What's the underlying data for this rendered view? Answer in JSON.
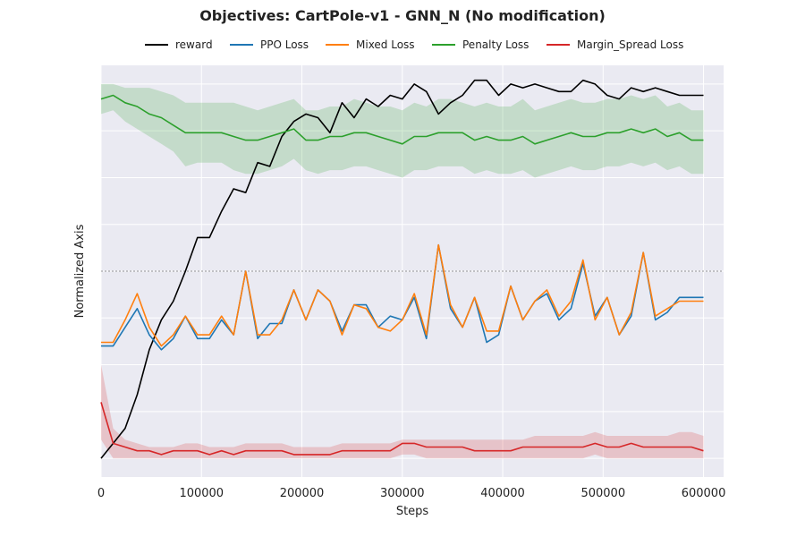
{
  "chart_data": {
    "type": "line",
    "title": "Objectives: CartPole-v1 - GNN_N (No modification)",
    "xlabel": "Steps",
    "ylabel": "Normalized Axis",
    "xlim": [
      0,
      620000
    ],
    "ylim": [
      -0.05,
      1.05
    ],
    "x_ticks": [
      0,
      100000,
      200000,
      300000,
      400000,
      500000,
      600000
    ],
    "x_tick_labels": [
      "0",
      "100000",
      "200000",
      "300000",
      "400000",
      "500000",
      "600000"
    ],
    "y_grid": [
      0.0,
      0.125,
      0.25,
      0.375,
      0.5,
      0.625,
      0.75,
      0.875,
      1.0
    ],
    "reference_line": {
      "y": 0.5,
      "style": "dashed",
      "color": "#777777"
    },
    "background": "#eaeaf2",
    "grid": true,
    "legend_position": "top-center",
    "x": [
      0,
      12000,
      24000,
      36000,
      48000,
      60000,
      72000,
      84000,
      96000,
      108000,
      120000,
      132000,
      144000,
      156000,
      168000,
      180000,
      192000,
      204000,
      216000,
      228000,
      240000,
      252000,
      264000,
      276000,
      288000,
      300000,
      312000,
      324000,
      336000,
      348000,
      360000,
      372000,
      384000,
      396000,
      408000,
      420000,
      432000,
      444000,
      456000,
      468000,
      480000,
      492000,
      504000,
      516000,
      528000,
      540000,
      552000,
      564000,
      576000,
      588000,
      600000
    ],
    "series": [
      {
        "name": "reward",
        "color": "#000000",
        "values": [
          0.0,
          0.04,
          0.08,
          0.17,
          0.29,
          0.37,
          0.42,
          0.5,
          0.59,
          0.59,
          0.66,
          0.72,
          0.71,
          0.79,
          0.78,
          0.86,
          0.9,
          0.92,
          0.91,
          0.87,
          0.95,
          0.91,
          0.96,
          0.94,
          0.97,
          0.96,
          1.0,
          0.98,
          0.92,
          0.95,
          0.97,
          1.01,
          1.01,
          0.97,
          1.0,
          0.99,
          1.0,
          0.99,
          0.98,
          0.98,
          1.01,
          1.0,
          0.97,
          0.96,
          0.99,
          0.98,
          0.99,
          0.98,
          0.97,
          0.97,
          0.97
        ]
      },
      {
        "name": "PPO Loss",
        "color": "#1f77b4",
        "values": [
          0.3,
          0.3,
          0.35,
          0.4,
          0.33,
          0.29,
          0.32,
          0.38,
          0.32,
          0.32,
          0.37,
          0.33,
          0.5,
          0.32,
          0.36,
          0.36,
          0.45,
          0.37,
          0.45,
          0.42,
          0.34,
          0.41,
          0.41,
          0.35,
          0.38,
          0.37,
          0.43,
          0.32,
          0.57,
          0.4,
          0.35,
          0.43,
          0.31,
          0.33,
          0.46,
          0.37,
          0.42,
          0.44,
          0.37,
          0.4,
          0.52,
          0.38,
          0.43,
          0.33,
          0.38,
          0.55,
          0.37,
          0.39,
          0.43,
          0.43,
          0.43
        ]
      },
      {
        "name": "Mixed Loss",
        "color": "#ff7f0e",
        "values": [
          0.31,
          0.31,
          0.37,
          0.44,
          0.35,
          0.3,
          0.33,
          0.38,
          0.33,
          0.33,
          0.38,
          0.33,
          0.5,
          0.33,
          0.33,
          0.37,
          0.45,
          0.37,
          0.45,
          0.42,
          0.33,
          0.41,
          0.4,
          0.35,
          0.34,
          0.37,
          0.44,
          0.33,
          0.57,
          0.41,
          0.35,
          0.43,
          0.34,
          0.34,
          0.46,
          0.37,
          0.42,
          0.45,
          0.38,
          0.42,
          0.53,
          0.37,
          0.43,
          0.33,
          0.39,
          0.55,
          0.38,
          0.4,
          0.42,
          0.42,
          0.42
        ]
      },
      {
        "name": "Penalty Loss",
        "color": "#2ca02c",
        "band_color": "#2ca02c",
        "values": [
          0.96,
          0.97,
          0.95,
          0.94,
          0.92,
          0.91,
          0.89,
          0.87,
          0.87,
          0.87,
          0.87,
          0.86,
          0.85,
          0.85,
          0.86,
          0.87,
          0.88,
          0.85,
          0.85,
          0.86,
          0.86,
          0.87,
          0.87,
          0.86,
          0.85,
          0.84,
          0.86,
          0.86,
          0.87,
          0.87,
          0.87,
          0.85,
          0.86,
          0.85,
          0.85,
          0.86,
          0.84,
          0.85,
          0.86,
          0.87,
          0.86,
          0.86,
          0.87,
          0.87,
          0.88,
          0.87,
          0.88,
          0.86,
          0.87,
          0.85,
          0.85
        ],
        "lower": [
          0.92,
          0.93,
          0.9,
          0.88,
          0.86,
          0.84,
          0.82,
          0.78,
          0.79,
          0.79,
          0.79,
          0.77,
          0.76,
          0.76,
          0.77,
          0.78,
          0.8,
          0.77,
          0.76,
          0.77,
          0.77,
          0.78,
          0.78,
          0.77,
          0.76,
          0.75,
          0.77,
          0.77,
          0.78,
          0.78,
          0.78,
          0.76,
          0.77,
          0.76,
          0.76,
          0.77,
          0.75,
          0.76,
          0.77,
          0.78,
          0.77,
          0.77,
          0.78,
          0.78,
          0.79,
          0.78,
          0.79,
          0.77,
          0.78,
          0.76,
          0.76
        ],
        "upper": [
          1.0,
          1.0,
          0.99,
          0.99,
          0.99,
          0.98,
          0.97,
          0.95,
          0.95,
          0.95,
          0.95,
          0.95,
          0.94,
          0.93,
          0.94,
          0.95,
          0.96,
          0.93,
          0.93,
          0.94,
          0.94,
          0.96,
          0.95,
          0.94,
          0.94,
          0.93,
          0.95,
          0.94,
          0.96,
          0.96,
          0.95,
          0.94,
          0.95,
          0.94,
          0.94,
          0.96,
          0.93,
          0.94,
          0.95,
          0.96,
          0.95,
          0.95,
          0.96,
          0.96,
          0.97,
          0.96,
          0.97,
          0.94,
          0.95,
          0.93,
          0.93
        ]
      },
      {
        "name": "Margin_Spread Loss",
        "color": "#d62728",
        "band_color": "#d62728",
        "values": [
          0.15,
          0.04,
          0.03,
          0.02,
          0.02,
          0.01,
          0.02,
          0.02,
          0.02,
          0.01,
          0.02,
          0.01,
          0.02,
          0.02,
          0.02,
          0.02,
          0.01,
          0.01,
          0.01,
          0.01,
          0.02,
          0.02,
          0.02,
          0.02,
          0.02,
          0.04,
          0.04,
          0.03,
          0.03,
          0.03,
          0.03,
          0.02,
          0.02,
          0.02,
          0.02,
          0.03,
          0.03,
          0.03,
          0.03,
          0.03,
          0.03,
          0.04,
          0.03,
          0.03,
          0.04,
          0.03,
          0.03,
          0.03,
          0.03,
          0.03,
          0.02
        ],
        "lower": [
          0.05,
          0.0,
          0.0,
          0.0,
          0.0,
          0.0,
          0.0,
          0.0,
          0.0,
          0.0,
          0.0,
          0.0,
          0.0,
          0.0,
          0.0,
          0.0,
          0.0,
          0.0,
          0.0,
          0.0,
          0.0,
          0.0,
          0.0,
          0.0,
          0.0,
          0.01,
          0.01,
          0.0,
          0.0,
          0.0,
          0.0,
          0.0,
          0.0,
          0.0,
          0.0,
          0.0,
          0.0,
          0.0,
          0.0,
          0.0,
          0.0,
          0.01,
          0.0,
          0.0,
          0.0,
          0.0,
          0.0,
          0.0,
          0.0,
          0.0,
          0.0
        ],
        "upper": [
          0.25,
          0.08,
          0.05,
          0.04,
          0.03,
          0.03,
          0.03,
          0.04,
          0.04,
          0.03,
          0.03,
          0.03,
          0.04,
          0.04,
          0.04,
          0.04,
          0.03,
          0.03,
          0.03,
          0.03,
          0.04,
          0.04,
          0.04,
          0.04,
          0.04,
          0.05,
          0.05,
          0.05,
          0.05,
          0.05,
          0.05,
          0.05,
          0.05,
          0.05,
          0.05,
          0.05,
          0.06,
          0.06,
          0.06,
          0.06,
          0.06,
          0.07,
          0.06,
          0.06,
          0.06,
          0.06,
          0.06,
          0.06,
          0.07,
          0.07,
          0.06
        ]
      }
    ]
  }
}
